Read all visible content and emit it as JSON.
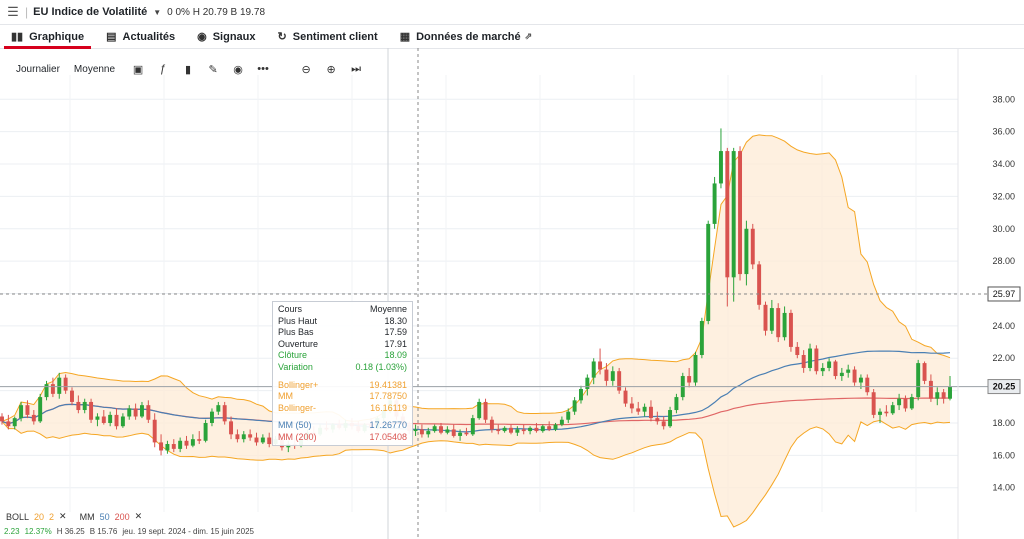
{
  "header": {
    "menu_icon": "hamburger-icon",
    "instrument": "EU Indice de Volatilité",
    "stats": "0   0%  H 20.79  B 19.78"
  },
  "tabs": [
    {
      "label": "Graphique",
      "icon": "chart-bars-icon",
      "active": true
    },
    {
      "label": "Actualités",
      "icon": "newspaper-icon"
    },
    {
      "label": "Signaux",
      "icon": "broadcast-icon"
    },
    {
      "label": "Sentiment client",
      "icon": "refresh-icon"
    },
    {
      "label": "Données de marché",
      "icon": "calendar-icon",
      "external": "⇗"
    }
  ],
  "toolbar": {
    "period": "Journalier",
    "indicator": "Moyenne"
  },
  "tooltip": {
    "title": "Cours",
    "title_value": "Moyenne",
    "rows": [
      {
        "label": "Plus Haut",
        "value": "18.30"
      },
      {
        "label": "Plus Bas",
        "value": "17.59"
      },
      {
        "label": "Ouverture",
        "value": "17.91"
      },
      {
        "label": "Clôture",
        "value": "18.09"
      },
      {
        "label": "Variation",
        "value": "0.18 (1.03%)"
      }
    ],
    "boll": [
      {
        "label": "Bollinger+",
        "value": "19.41381"
      },
      {
        "label": "MM",
        "value": "17.78750"
      },
      {
        "label": "Bollinger-",
        "value": "16.16119"
      }
    ],
    "ma": [
      {
        "label": "MM (50)",
        "value": "17.26770"
      },
      {
        "label": "MM (200)",
        "value": "17.05408"
      }
    ]
  },
  "legend": {
    "boll": "BOLL",
    "boll_p1": "20",
    "boll_p2": "2",
    "ma": "MM",
    "ma_p1": "50",
    "ma_p2": "200",
    "close_mark": "✕",
    "bottom": [
      "2.23",
      "12.37%",
      "H 36.25",
      "B 15.76",
      "jeu. 19 sept. 2024 - dim. 15 juin 2025"
    ]
  },
  "chart_data": {
    "type": "candlestick",
    "yaxis_ticks": [
      "38.00",
      "36.00",
      "34.00",
      "32.00",
      "30.00",
      "28.00",
      "26.00",
      "24.00",
      "22.00",
      "20.00",
      "18.00",
      "16.00",
      "14.00"
    ],
    "ylim": [
      12.5,
      39.5
    ],
    "current_price": "20.25",
    "crosshair_price": "25.97",
    "colors": {
      "up": "#2aa33a",
      "down": "#d9534f",
      "boll": "#f5a623",
      "boll_fill": "#fdebd5",
      "ma50": "#4a7fb3",
      "ma200": "#e06666"
    },
    "ohlc": [
      [
        18.4,
        18.6,
        17.9,
        18.1
      ],
      [
        18.1,
        18.5,
        17.6,
        17.8
      ],
      [
        17.8,
        18.4,
        17.6,
        18.3
      ],
      [
        18.3,
        19.3,
        18.1,
        19.1
      ],
      [
        19.1,
        19.4,
        18.3,
        18.5
      ],
      [
        18.5,
        18.8,
        17.9,
        18.1
      ],
      [
        18.1,
        19.8,
        18.0,
        19.6
      ],
      [
        19.6,
        20.6,
        19.4,
        20.4
      ],
      [
        20.4,
        20.8,
        19.6,
        19.8
      ],
      [
        19.8,
        21.1,
        19.5,
        20.8
      ],
      [
        20.8,
        21.0,
        19.8,
        20.0
      ],
      [
        20.0,
        20.2,
        19.1,
        19.3
      ],
      [
        19.3,
        19.7,
        18.6,
        18.8
      ],
      [
        18.8,
        19.5,
        18.6,
        19.3
      ],
      [
        19.3,
        19.5,
        18.0,
        18.2
      ],
      [
        18.2,
        18.6,
        17.8,
        18.4
      ],
      [
        18.4,
        18.8,
        17.9,
        18.0
      ],
      [
        18.0,
        18.7,
        17.8,
        18.5
      ],
      [
        18.5,
        18.9,
        17.6,
        17.8
      ],
      [
        17.8,
        18.6,
        17.7,
        18.4
      ],
      [
        18.4,
        19.1,
        18.2,
        18.9
      ],
      [
        18.9,
        19.2,
        18.2,
        18.4
      ],
      [
        18.4,
        19.3,
        18.3,
        19.1
      ],
      [
        19.1,
        19.4,
        18.0,
        18.2
      ],
      [
        18.2,
        18.6,
        16.5,
        16.8
      ],
      [
        16.8,
        17.3,
        16.0,
        16.3
      ],
      [
        16.3,
        16.9,
        16.1,
        16.7
      ],
      [
        16.7,
        17.0,
        16.2,
        16.4
      ],
      [
        16.4,
        17.1,
        16.2,
        16.9
      ],
      [
        16.9,
        17.2,
        16.4,
        16.6
      ],
      [
        16.6,
        17.3,
        16.5,
        17.0
      ],
      [
        17.0,
        17.5,
        16.7,
        16.9
      ],
      [
        16.9,
        18.2,
        16.8,
        18.0
      ],
      [
        18.0,
        18.9,
        17.8,
        18.7
      ],
      [
        18.7,
        19.3,
        18.5,
        19.1
      ],
      [
        19.1,
        19.3,
        17.9,
        18.1
      ],
      [
        18.1,
        18.4,
        17.0,
        17.3
      ],
      [
        17.3,
        17.6,
        16.8,
        17.0
      ],
      [
        17.0,
        17.5,
        16.8,
        17.3
      ],
      [
        17.3,
        17.6,
        16.9,
        17.1
      ],
      [
        17.1,
        17.4,
        16.6,
        16.8
      ],
      [
        16.8,
        17.3,
        16.7,
        17.1
      ],
      [
        17.1,
        17.4,
        16.5,
        16.7
      ],
      [
        16.7,
        17.2,
        16.6,
        17.0
      ],
      [
        17.0,
        17.1,
        16.3,
        16.5
      ],
      [
        16.5,
        16.9,
        16.2,
        16.7
      ],
      [
        16.7,
        17.1,
        16.4,
        16.6
      ],
      [
        16.6,
        17.2,
        16.5,
        17.0
      ],
      [
        17.0,
        17.6,
        16.9,
        17.4
      ],
      [
        17.4,
        17.8,
        17.1,
        17.3
      ],
      [
        17.3,
        17.9,
        17.2,
        17.7
      ],
      [
        17.7,
        18.1,
        17.5,
        17.6
      ],
      [
        17.6,
        18.0,
        17.4,
        17.9
      ],
      [
        17.9,
        18.2,
        17.6,
        17.7
      ],
      [
        17.7,
        18.2,
        17.5,
        18.0
      ],
      [
        18.0,
        18.3,
        17.6,
        17.8
      ],
      [
        17.8,
        18.1,
        17.4,
        17.5
      ],
      [
        17.5,
        18.0,
        17.4,
        17.9
      ],
      [
        17.9,
        18.3,
        17.6,
        17.7
      ],
      [
        17.7,
        18.4,
        17.6,
        18.3
      ],
      [
        18.3,
        19.0,
        18.1,
        18.8
      ],
      [
        18.8,
        19.6,
        18.6,
        19.4
      ],
      [
        19.4,
        19.5,
        18.2,
        18.4
      ],
      [
        18.4,
        18.6,
        17.7,
        17.9
      ],
      [
        17.9,
        18.1,
        17.3,
        17.5
      ],
      [
        17.5,
        17.9,
        17.2,
        17.6
      ],
      [
        17.6,
        17.9,
        17.1,
        17.3
      ],
      [
        17.3,
        17.7,
        17.1,
        17.5
      ],
      [
        17.5,
        17.9,
        17.4,
        17.8
      ],
      [
        17.8,
        18.0,
        17.3,
        17.4
      ],
      [
        17.4,
        17.8,
        17.3,
        17.6
      ],
      [
        17.6,
        17.9,
        17.1,
        17.2
      ],
      [
        17.2,
        17.6,
        16.9,
        17.4
      ],
      [
        17.4,
        17.7,
        17.2,
        17.3
      ],
      [
        17.3,
        18.5,
        17.2,
        18.3
      ],
      [
        18.3,
        19.5,
        18.2,
        19.3
      ],
      [
        19.3,
        19.5,
        18.0,
        18.2
      ],
      [
        18.2,
        18.4,
        17.4,
        17.6
      ],
      [
        17.6,
        17.9,
        17.3,
        17.5
      ],
      [
        17.5,
        17.8,
        17.4,
        17.7
      ],
      [
        17.7,
        17.9,
        17.3,
        17.4
      ],
      [
        17.4,
        17.8,
        17.2,
        17.6
      ],
      [
        17.6,
        17.9,
        17.3,
        17.5
      ],
      [
        17.5,
        17.8,
        17.3,
        17.7
      ],
      [
        17.7,
        18.0,
        17.4,
        17.5
      ],
      [
        17.5,
        17.9,
        17.4,
        17.8
      ],
      [
        17.8,
        18.1,
        17.5,
        17.6
      ],
      [
        17.6,
        18.0,
        17.5,
        17.9
      ],
      [
        17.9,
        18.4,
        17.8,
        18.2
      ],
      [
        18.2,
        18.9,
        18.0,
        18.7
      ],
      [
        18.7,
        19.6,
        18.5,
        19.4
      ],
      [
        19.4,
        20.3,
        19.2,
        20.1
      ],
      [
        20.1,
        21.0,
        19.7,
        20.8
      ],
      [
        20.8,
        22.0,
        20.4,
        21.8
      ],
      [
        21.8,
        22.6,
        21.0,
        21.3
      ],
      [
        21.3,
        21.7,
        20.3,
        20.6
      ],
      [
        20.6,
        21.5,
        20.3,
        21.2
      ],
      [
        21.2,
        21.4,
        19.8,
        20.0
      ],
      [
        20.0,
        20.2,
        19.0,
        19.2
      ],
      [
        19.2,
        19.6,
        18.6,
        18.9
      ],
      [
        18.9,
        19.3,
        18.5,
        18.7
      ],
      [
        18.7,
        19.2,
        18.4,
        19.0
      ],
      [
        19.0,
        19.4,
        18.1,
        18.3
      ],
      [
        18.3,
        18.7,
        17.9,
        18.1
      ],
      [
        18.1,
        18.4,
        17.6,
        17.8
      ],
      [
        17.8,
        19.0,
        17.7,
        18.8
      ],
      [
        18.8,
        19.8,
        18.6,
        19.6
      ],
      [
        19.6,
        21.1,
        19.4,
        20.9
      ],
      [
        20.9,
        21.4,
        20.2,
        20.5
      ],
      [
        20.5,
        22.4,
        20.3,
        22.2
      ],
      [
        22.2,
        24.5,
        22.0,
        24.3
      ],
      [
        24.3,
        30.5,
        24.1,
        30.3
      ],
      [
        30.3,
        33.2,
        30.0,
        32.8
      ],
      [
        32.8,
        36.2,
        32.5,
        34.8
      ],
      [
        34.8,
        35.0,
        25.2,
        27.0
      ],
      [
        27.0,
        35.0,
        25.5,
        34.8
      ],
      [
        34.8,
        35.1,
        26.8,
        27.2
      ],
      [
        27.2,
        30.5,
        26.5,
        30.0
      ],
      [
        30.0,
        30.3,
        27.5,
        27.8
      ],
      [
        27.8,
        28.0,
        25.0,
        25.3
      ],
      [
        25.3,
        25.5,
        23.4,
        23.7
      ],
      [
        23.7,
        25.6,
        23.5,
        25.1
      ],
      [
        25.1,
        25.4,
        23.0,
        23.3
      ],
      [
        23.3,
        25.2,
        23.1,
        24.8
      ],
      [
        24.8,
        25.0,
        22.4,
        22.7
      ],
      [
        22.7,
        23.0,
        22.0,
        22.2
      ],
      [
        22.2,
        22.5,
        21.1,
        21.4
      ],
      [
        21.4,
        22.9,
        21.2,
        22.6
      ],
      [
        22.6,
        22.8,
        21.0,
        21.2
      ],
      [
        21.2,
        21.7,
        20.9,
        21.4
      ],
      [
        21.4,
        22.0,
        21.2,
        21.8
      ],
      [
        21.8,
        21.9,
        20.7,
        20.9
      ],
      [
        20.9,
        21.4,
        20.6,
        21.1
      ],
      [
        21.1,
        21.6,
        20.8,
        21.3
      ],
      [
        21.3,
        21.5,
        20.3,
        20.5
      ],
      [
        20.5,
        21.0,
        20.1,
        20.8
      ],
      [
        20.8,
        21.0,
        19.7,
        19.9
      ],
      [
        19.9,
        20.1,
        18.3,
        18.5
      ],
      [
        18.5,
        18.9,
        18.0,
        18.7
      ],
      [
        18.7,
        19.1,
        18.4,
        18.6
      ],
      [
        18.6,
        19.3,
        18.5,
        19.1
      ],
      [
        19.1,
        19.8,
        18.8,
        19.5
      ],
      [
        19.5,
        19.7,
        18.7,
        18.9
      ],
      [
        18.9,
        19.8,
        18.8,
        19.6
      ],
      [
        19.6,
        21.9,
        19.4,
        21.7
      ],
      [
        21.7,
        21.8,
        20.4,
        20.6
      ],
      [
        20.6,
        21.0,
        19.3,
        19.5
      ],
      [
        19.5,
        20.2,
        19.1,
        19.9
      ],
      [
        19.9,
        20.1,
        19.2,
        19.5
      ],
      [
        19.5,
        20.9,
        19.4,
        20.25
      ]
    ]
  }
}
